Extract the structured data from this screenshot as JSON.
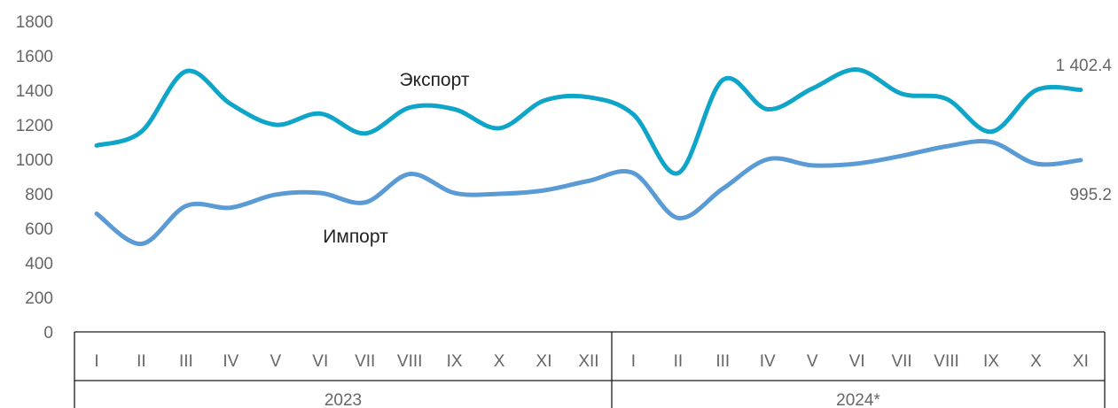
{
  "chart_data": {
    "type": "line",
    "ylim": [
      0,
      1800
    ],
    "yticks": [
      0,
      200,
      400,
      600,
      800,
      1000,
      1200,
      1400,
      1600,
      1800
    ],
    "ytick_labels": [
      "0",
      "200",
      "400",
      "600",
      "800",
      "1000",
      "1200",
      "1400",
      "1600",
      "1800"
    ],
    "grid": false,
    "legend": "none (series labelled inline)",
    "groups": [
      {
        "label": "2023",
        "categories": [
          "I",
          "II",
          "III",
          "IV",
          "V",
          "VI",
          "VII",
          "VIII",
          "IX",
          "X",
          "XI",
          "XII"
        ]
      },
      {
        "label": "2024*",
        "categories": [
          "I",
          "II",
          "III",
          "IV",
          "V",
          "VI",
          "VII",
          "VIII",
          "IX",
          "X",
          "XI"
        ]
      }
    ],
    "categories": [
      "I",
      "II",
      "III",
      "IV",
      "V",
      "VI",
      "VII",
      "VIII",
      "IX",
      "X",
      "XI",
      "XII",
      "I",
      "II",
      "III",
      "IV",
      "V",
      "VI",
      "VII",
      "VIII",
      "IX",
      "X",
      "XI"
    ],
    "series": [
      {
        "name": "Экспорт",
        "color": "#0ea5c8",
        "values": [
          1080,
          1160,
          1510,
          1320,
          1200,
          1265,
          1150,
          1300,
          1290,
          1180,
          1340,
          1360,
          1260,
          920,
          1460,
          1290,
          1410,
          1520,
          1380,
          1350,
          1160,
          1400,
          1402.4
        ],
        "end_label": "1 402.4"
      },
      {
        "name": "Импорт",
        "color": "#5b9bd5",
        "values": [
          685,
          510,
          730,
          720,
          795,
          805,
          750,
          915,
          805,
          800,
          820,
          875,
          920,
          660,
          830,
          1000,
          965,
          975,
          1020,
          1075,
          1100,
          975,
          995.2
        ],
        "end_label": "995.2"
      }
    ]
  }
}
